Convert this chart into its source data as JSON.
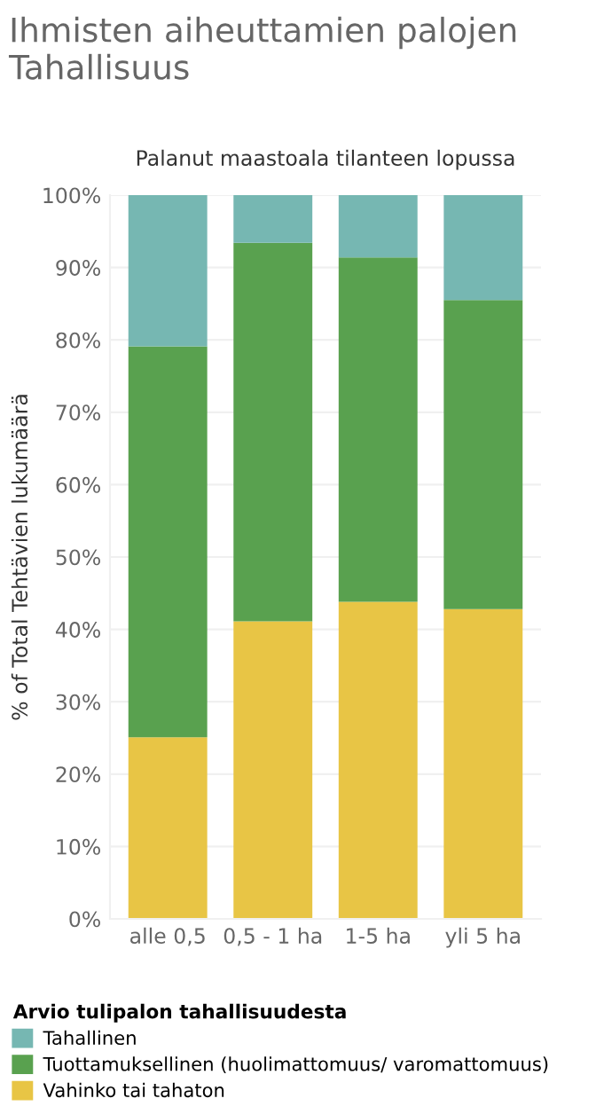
{
  "chart_data": {
    "type": "bar",
    "title": "Ihmisten aiheuttamien palojen Tahallisuus",
    "subtitle": "Palanut maastoala tilanteen lopussa",
    "ylabel": "% of Total Tehtävien lukumäärä",
    "legend_title": "Arvio tulipalon tahallisuudesta",
    "categories": [
      "alle 0,5",
      "0,5 - 1 ha",
      "1-5 ha",
      "yli 5 ha"
    ],
    "stacked": true,
    "series": [
      {
        "name": "Vahinko tai tahaton",
        "color": "#e8c545",
        "values": [
          25.1,
          41.1,
          43.8,
          42.8
        ]
      },
      {
        "name": "Tuottamuksellinen (huolimattomuus/ varomattomuus)",
        "color": "#59a14f",
        "values": [
          54.0,
          52.3,
          47.6,
          42.7
        ]
      },
      {
        "name": "Tahallinen",
        "color": "#76b7b2",
        "values": [
          20.9,
          6.6,
          8.6,
          14.5
        ]
      }
    ],
    "ylim": [
      0,
      100
    ],
    "yticks": [
      {
        "value": 0,
        "label": "0%"
      },
      {
        "value": 10,
        "label": "10%"
      },
      {
        "value": 20,
        "label": "20%"
      },
      {
        "value": 30,
        "label": "30%"
      },
      {
        "value": 40,
        "label": "40%"
      },
      {
        "value": 50,
        "label": "50%"
      },
      {
        "value": 60,
        "label": "60%"
      },
      {
        "value": 70,
        "label": "70%"
      },
      {
        "value": 80,
        "label": "80%"
      },
      {
        "value": 90,
        "label": "90%"
      },
      {
        "value": 100,
        "label": "100%"
      }
    ],
    "grid": "y",
    "legend": "bottom"
  }
}
